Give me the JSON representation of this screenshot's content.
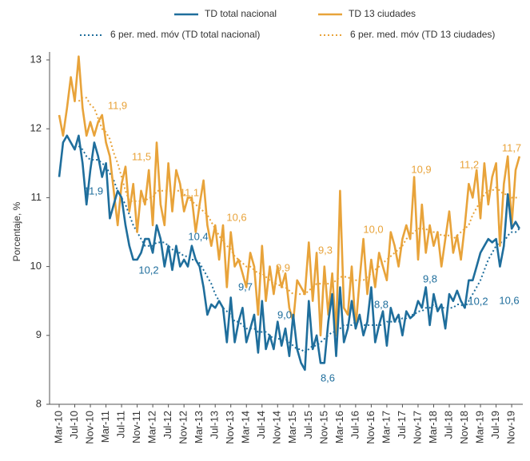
{
  "chart_data": {
    "type": "line",
    "y_label": "Porcentaje, %",
    "ylim": [
      8,
      13
    ],
    "yticks": [
      8,
      9,
      10,
      11,
      12,
      13
    ],
    "categories": [
      "Mar-10",
      null,
      null,
      null,
      "Jul-10",
      null,
      null,
      null,
      "Nov-10",
      null,
      null,
      null,
      "Mar-11",
      null,
      null,
      null,
      "Jul-11",
      null,
      null,
      null,
      "Nov-11",
      null,
      null,
      null,
      "Mar-12",
      null,
      null,
      null,
      "Jul-12",
      null,
      null,
      null,
      "Nov-12",
      null,
      null,
      null,
      "Mar-13",
      null,
      null,
      null,
      "Jul-13",
      null,
      null,
      null,
      "Nov-13",
      null,
      null,
      null,
      "Mar-14",
      null,
      null,
      null,
      "Jul-14",
      null,
      null,
      null,
      "Nov-14",
      null,
      null,
      null,
      "Mar-15",
      null,
      null,
      null,
      "Jul-15",
      null,
      null,
      null,
      "Nov-15",
      null,
      null,
      null,
      "Mar-16",
      null,
      null,
      null,
      "Jul-16",
      null,
      null,
      null,
      "Nov-16",
      null,
      null,
      null,
      "Mar-17",
      null,
      null,
      null,
      "Jul-17",
      null,
      null,
      null,
      "Nov-17",
      null,
      null,
      null,
      "Mar-18",
      null,
      null,
      null,
      "Jul-18",
      null,
      null,
      null,
      "Nov-18",
      null,
      null,
      null,
      "Mar-19",
      null,
      null,
      null,
      "Jul-19",
      null,
      null,
      null,
      "Nov-19",
      null,
      null
    ],
    "series": [
      {
        "name": "TD total nacional",
        "color": "#1f6e9c",
        "dash": false,
        "values": [
          11.3,
          11.8,
          11.9,
          11.8,
          11.7,
          11.9,
          11.5,
          10.9,
          11.4,
          11.8,
          11.6,
          11.3,
          11.5,
          10.7,
          10.9,
          11.1,
          11.0,
          10.6,
          10.3,
          10.1,
          10.1,
          10.2,
          10.4,
          10.4,
          10.2,
          10.6,
          10.4,
          10.0,
          10.3,
          9.95,
          10.3,
          10.0,
          10.1,
          10.0,
          10.3,
          10.1,
          10.0,
          9.7,
          9.3,
          9.45,
          9.4,
          9.5,
          9.4,
          8.9,
          9.55,
          8.9,
          9.2,
          9.4,
          8.9,
          9.1,
          9.3,
          8.75,
          9.5,
          8.8,
          9.0,
          8.8,
          9.2,
          8.85,
          9.1,
          8.7,
          9.3,
          8.8,
          8.6,
          8.5,
          9.5,
          8.8,
          9.0,
          8.6,
          8.6,
          9.2,
          9.6,
          8.7,
          9.7,
          8.9,
          9.1,
          9.5,
          9.1,
          9.3,
          9.0,
          9.2,
          9.7,
          8.9,
          9.15,
          9.35,
          8.85,
          9.4,
          9.2,
          9.3,
          9.0,
          9.35,
          9.25,
          9.3,
          9.5,
          9.4,
          9.7,
          9.15,
          9.6,
          9.35,
          9.45,
          9.1,
          9.6,
          9.5,
          9.65,
          9.5,
          9.4,
          9.8,
          9.8,
          10.0,
          10.2,
          10.3,
          10.4,
          10.35,
          10.4,
          10.0,
          10.3,
          11.05,
          10.55,
          10.65,
          10.55
        ]
      },
      {
        "name": "TD 13 ciudades",
        "color": "#e8a33a",
        "dash": false,
        "values": [
          12.2,
          11.9,
          12.3,
          12.75,
          12.4,
          13.05,
          12.3,
          11.9,
          12.1,
          11.9,
          12.1,
          12.2,
          11.8,
          11.6,
          11.1,
          10.6,
          11.2,
          11.45,
          10.8,
          11.2,
          10.5,
          11.1,
          10.9,
          11.4,
          10.6,
          11.8,
          10.9,
          10.6,
          11.5,
          10.8,
          11.4,
          11.2,
          10.8,
          11.0,
          11.0,
          10.5,
          10.9,
          11.25,
          10.6,
          10.3,
          10.6,
          10.1,
          10.6,
          9.7,
          10.5,
          10.0,
          10.1,
          9.9,
          9.7,
          10.2,
          10.0,
          9.3,
          10.3,
          9.5,
          10.0,
          9.6,
          10.0,
          9.7,
          9.9,
          9.4,
          9.2,
          9.8,
          9.7,
          9.6,
          10.35,
          9.5,
          10.2,
          9.0,
          10.0,
          9.3,
          9.9,
          9.0,
          11.1,
          9.4,
          9.3,
          10.0,
          9.1,
          9.8,
          10.4,
          9.6,
          10.1,
          9.7,
          10.2,
          10.0,
          9.8,
          10.5,
          10.3,
          10.0,
          10.4,
          10.6,
          10.4,
          11.3,
          10.1,
          10.9,
          10.2,
          10.6,
          10.3,
          10.5,
          10.0,
          10.4,
          10.8,
          10.2,
          10.45,
          10.1,
          10.6,
          11.2,
          11.0,
          11.4,
          10.7,
          11.5,
          10.9,
          11.3,
          11.5,
          10.3,
          11.2,
          11.6,
          10.6,
          11.4,
          11.6
        ]
      },
      {
        "name": "6 per. med. móv (TD total nacional)",
        "color": "#1f6e9c",
        "dash": true,
        "values": [
          null,
          null,
          null,
          null,
          null,
          11.75,
          11.7,
          11.6,
          11.55,
          11.55,
          11.55,
          11.5,
          11.45,
          11.35,
          11.25,
          11.1,
          11.0,
          10.9,
          10.75,
          10.6,
          10.5,
          10.4,
          10.3,
          10.3,
          10.3,
          10.35,
          10.35,
          10.35,
          10.3,
          10.25,
          10.2,
          10.2,
          10.15,
          10.15,
          10.1,
          10.1,
          10.05,
          9.95,
          9.85,
          9.75,
          9.6,
          9.5,
          9.4,
          9.35,
          9.3,
          9.2,
          9.2,
          9.15,
          9.1,
          9.1,
          9.1,
          9.05,
          9.05,
          9.05,
          9.0,
          8.95,
          8.95,
          8.95,
          8.95,
          8.9,
          8.85,
          8.8,
          8.8,
          8.75,
          8.8,
          8.85,
          8.85,
          8.9,
          8.95,
          9.0,
          9.05,
          9.05,
          9.1,
          9.15,
          9.15,
          9.15,
          9.2,
          9.2,
          9.15,
          9.15,
          9.15,
          9.15,
          9.15,
          9.15,
          9.2,
          9.2,
          9.2,
          9.2,
          9.25,
          9.25,
          9.3,
          9.3,
          9.35,
          9.35,
          9.4,
          9.4,
          9.45,
          9.4,
          9.4,
          9.4,
          9.4,
          9.4,
          9.45,
          9.45,
          9.4,
          9.5,
          9.6,
          9.7,
          9.8,
          9.95,
          10.1,
          10.2,
          10.3,
          10.35,
          10.35,
          10.45,
          10.5,
          10.5,
          10.55
        ]
      },
      {
        "name": "6 per. med. móv (TD 13 ciudades)",
        "color": "#e8a33a",
        "dash": true,
        "values": [
          null,
          null,
          null,
          null,
          null,
          12.4,
          12.45,
          12.45,
          12.35,
          12.3,
          12.15,
          12.0,
          11.95,
          11.85,
          11.65,
          11.5,
          11.3,
          11.1,
          10.95,
          10.95,
          10.95,
          10.95,
          10.95,
          11.0,
          11.0,
          11.1,
          11.1,
          11.1,
          11.1,
          11.1,
          11.1,
          11.1,
          11.05,
          11.0,
          10.95,
          10.9,
          10.85,
          10.8,
          10.75,
          10.65,
          10.55,
          10.45,
          10.35,
          10.3,
          10.25,
          10.15,
          10.1,
          10.05,
          10.0,
          10.0,
          9.95,
          9.9,
          9.9,
          9.85,
          9.8,
          9.75,
          9.75,
          9.7,
          9.7,
          9.65,
          9.6,
          9.6,
          9.6,
          9.6,
          9.65,
          9.7,
          9.75,
          9.75,
          9.75,
          9.75,
          9.75,
          9.8,
          9.85,
          9.85,
          9.85,
          9.8,
          9.8,
          9.8,
          9.8,
          9.85,
          9.9,
          9.95,
          10.0,
          10.05,
          10.1,
          10.15,
          10.2,
          10.25,
          10.3,
          10.4,
          10.45,
          10.5,
          10.55,
          10.55,
          10.55,
          10.5,
          10.5,
          10.5,
          10.45,
          10.45,
          10.45,
          10.4,
          10.45,
          10.5,
          10.55,
          10.6,
          10.75,
          10.85,
          10.95,
          11.05,
          11.1,
          11.1,
          11.15,
          11.1,
          11.05,
          11.05,
          11.0,
          11.0,
          11.0
        ]
      }
    ],
    "annotations": [
      {
        "text": "11,9",
        "color": "#e8a33a"
      },
      {
        "text": "11,9",
        "color": "#1f6e9c"
      },
      {
        "text": "11,5",
        "color": "#e8a33a"
      },
      {
        "text": "10,2",
        "color": "#1f6e9c"
      },
      {
        "text": "11,1",
        "color": "#e8a33a"
      },
      {
        "text": "10,4",
        "color": "#1f6e9c"
      },
      {
        "text": "10,6",
        "color": "#e8a33a"
      },
      {
        "text": "9,7",
        "color": "#1f6e9c"
      },
      {
        "text": "9,9",
        "color": "#e8a33a"
      },
      {
        "text": "9,0",
        "color": "#1f6e9c"
      },
      {
        "text": "9,3",
        "color": "#e8a33a"
      },
      {
        "text": "8,6",
        "color": "#1f6e9c"
      },
      {
        "text": "10,0",
        "color": "#e8a33a"
      },
      {
        "text": "8,8",
        "color": "#1f6e9c"
      },
      {
        "text": "10,9",
        "color": "#e8a33a"
      },
      {
        "text": "9,8",
        "color": "#1f6e9c"
      },
      {
        "text": "11,2",
        "color": "#e8a33a"
      },
      {
        "text": "10,2",
        "color": "#1f6e9c"
      },
      {
        "text": "11,7",
        "color": "#e8a33a"
      },
      {
        "text": "10,6",
        "color": "#1f6e9c"
      }
    ]
  }
}
